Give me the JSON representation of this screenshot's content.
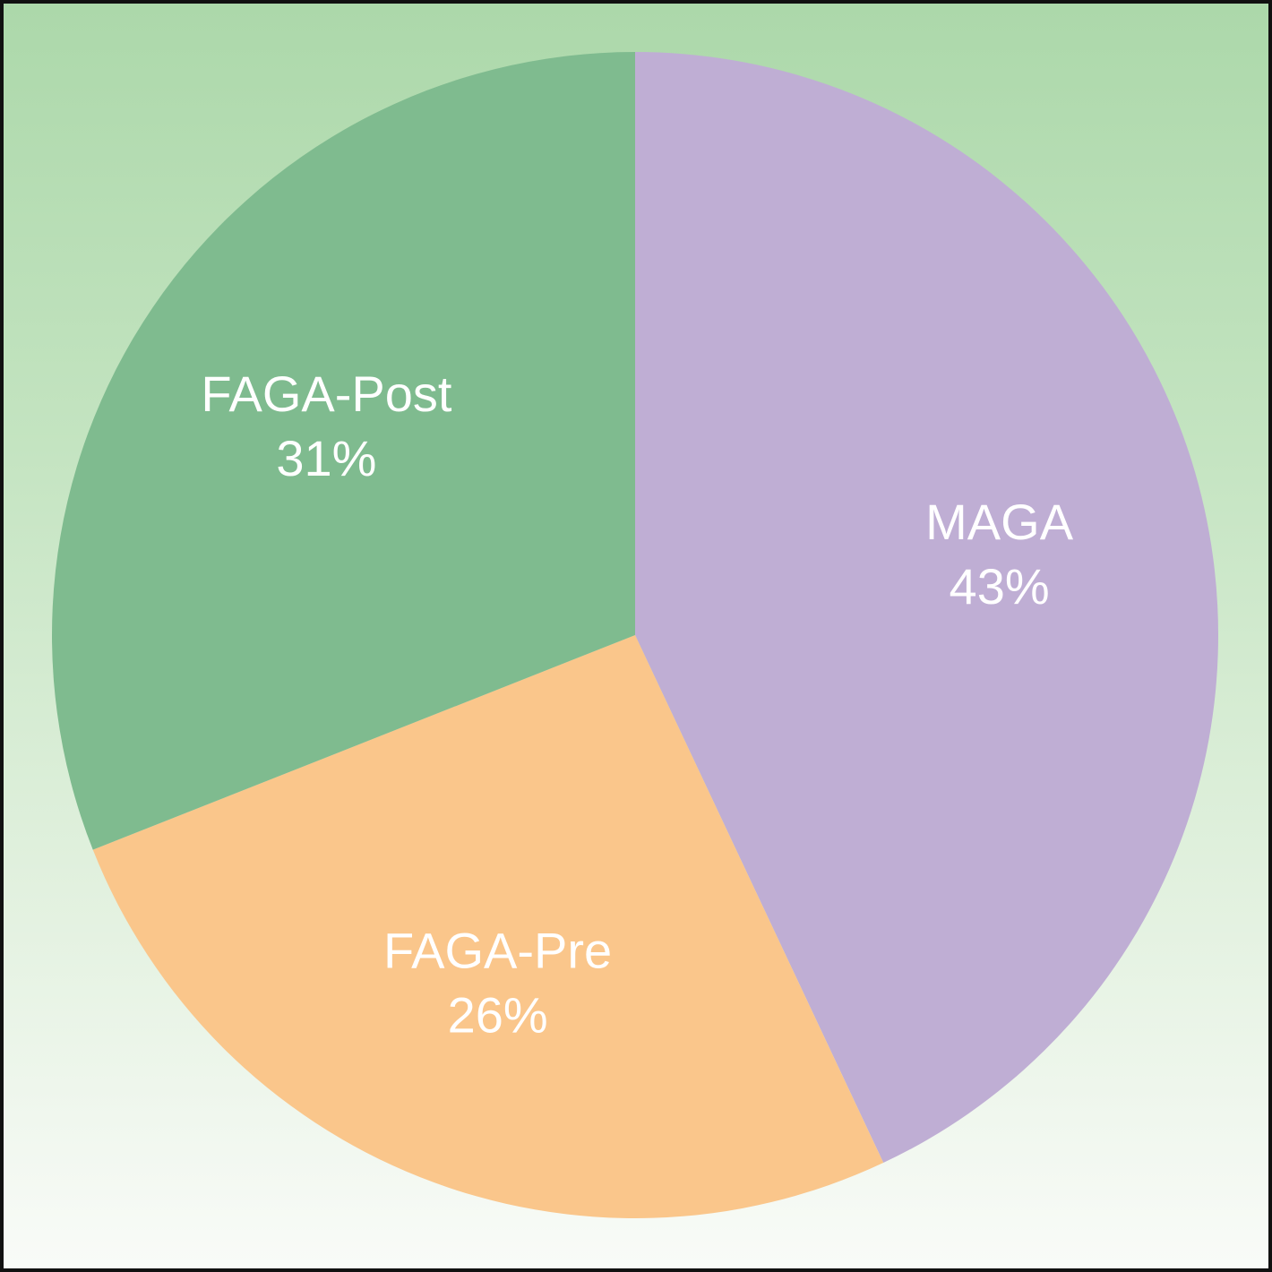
{
  "chart_data": {
    "type": "pie",
    "title": "",
    "start_angle_deg": 0,
    "direction": "clockwise",
    "slices": [
      {
        "label": "MAGA",
        "value": 43,
        "value_label": "43%",
        "color": "#bfaed4"
      },
      {
        "label": "FAGA-Pre",
        "value": 26,
        "value_label": "26%",
        "color": "#fac68b"
      },
      {
        "label": "FAGA-Post",
        "value": 31,
        "value_label": "31%",
        "color": "#7fbb8f"
      }
    ],
    "legend": "none",
    "labels_inside": true
  },
  "colors": {
    "background_top": "#acd8aa",
    "background_bottom": "#f9fbf8",
    "border": "#111111",
    "label_text": "#ffffff"
  }
}
